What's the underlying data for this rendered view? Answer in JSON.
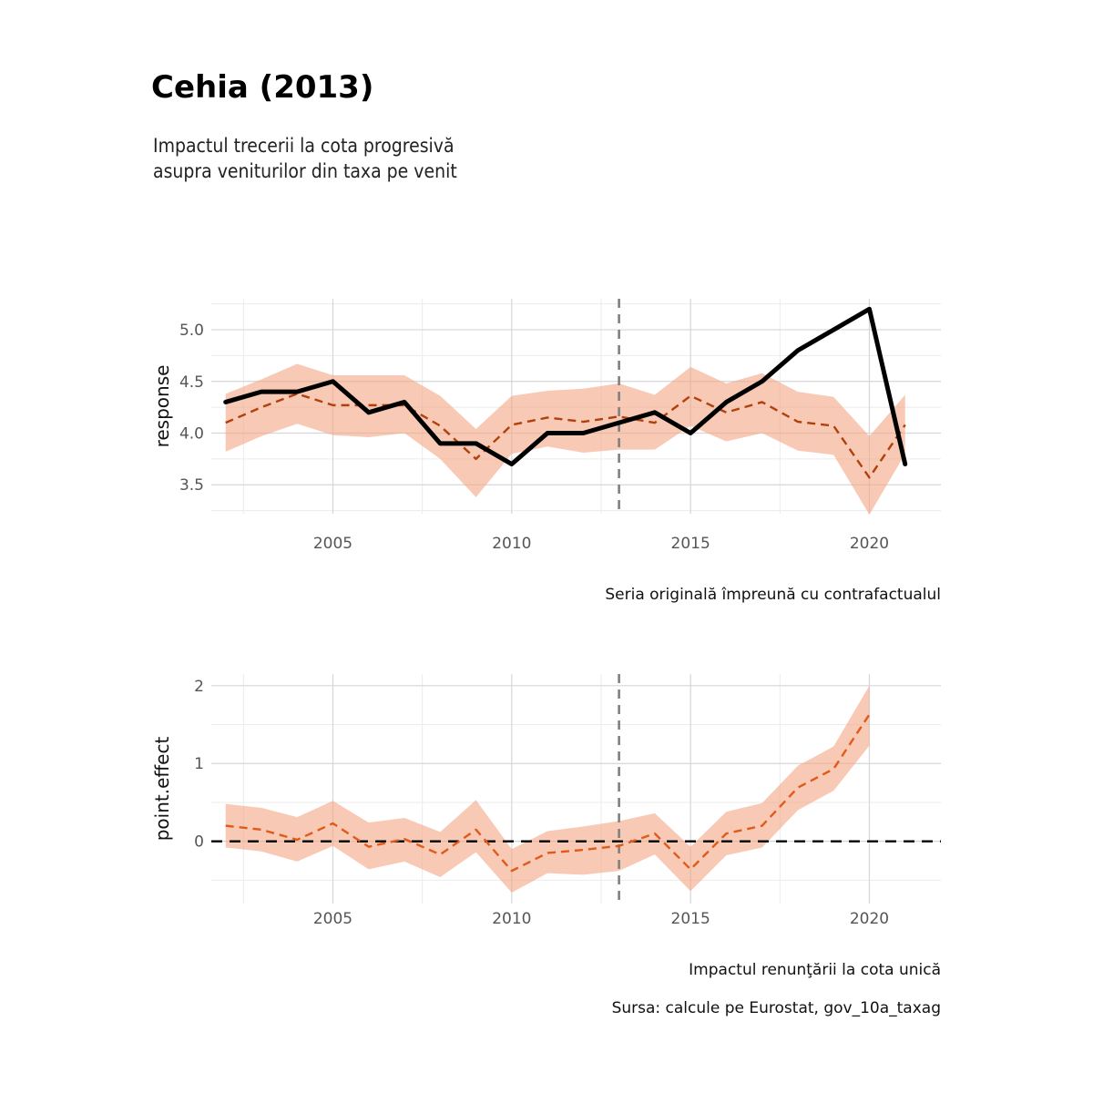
{
  "title": "Cehia (2013)",
  "subtitle_lines": [
    "Impactul trecerii la cota progresivă",
    "asupra veniturilor din taxa pe venit"
  ],
  "source": "Sursa: calcule pe Eurostat, gov_10a_taxag",
  "colors": {
    "band": "#f4a582",
    "counterfactual": "#b2400d",
    "effect": "#e05a1a",
    "actual": "#000000",
    "intervention": "#808080"
  },
  "chart_data": [
    {
      "type": "line",
      "ylabel": "response",
      "caption": "Seria originală împreună cu contrafactualul",
      "intervention_x": 2013,
      "xlim": [
        2001.6,
        2022.0
      ],
      "ylim": [
        3.22,
        5.3
      ],
      "x_ticks": [
        2005,
        2010,
        2015,
        2020
      ],
      "y_ticks": [
        3.5,
        4.0,
        4.5,
        5.0
      ],
      "y_tick_labels": [
        "3.5",
        "4.0",
        "4.5",
        "5.0"
      ],
      "x": [
        2002,
        2003,
        2004,
        2005,
        2006,
        2007,
        2008,
        2009,
        2010,
        2011,
        2012,
        2013,
        2014,
        2015,
        2016,
        2017,
        2018,
        2019,
        2020,
        2021
      ],
      "series": [
        {
          "role": "actual",
          "values": [
            4.3,
            4.4,
            4.4,
            4.5,
            4.2,
            4.3,
            3.9,
            3.9,
            3.7,
            4.0,
            4.0,
            4.1,
            4.2,
            4.0,
            4.3,
            4.5,
            4.8,
            5.0,
            5.2,
            3.7
          ]
        },
        {
          "role": "counterfactual",
          "values": [
            4.1,
            4.25,
            4.38,
            4.27,
            4.27,
            4.27,
            4.07,
            3.75,
            4.08,
            4.15,
            4.11,
            4.16,
            4.1,
            4.36,
            4.2,
            4.3,
            4.11,
            4.07,
            3.57,
            4.08
          ]
        },
        {
          "role": "lower",
          "values": [
            3.82,
            3.97,
            4.09,
            3.98,
            3.96,
            4.0,
            3.75,
            3.38,
            3.8,
            3.87,
            3.81,
            3.84,
            3.84,
            4.07,
            3.92,
            4.0,
            3.83,
            3.79,
            3.21,
            3.8
          ]
        },
        {
          "role": "upper",
          "values": [
            4.38,
            4.52,
            4.67,
            4.56,
            4.56,
            4.56,
            4.36,
            4.04,
            4.36,
            4.41,
            4.43,
            4.48,
            4.37,
            4.64,
            4.48,
            4.58,
            4.4,
            4.35,
            3.97,
            4.37
          ]
        }
      ]
    },
    {
      "type": "line",
      "ylabel": "point.effect",
      "caption": "Impactul renunţării la cota unică",
      "intervention_x": 2013,
      "zero_line": 0,
      "xlim": [
        2001.6,
        2022.0
      ],
      "ylim": [
        -0.8,
        2.15
      ],
      "x_ticks": [
        2005,
        2010,
        2015,
        2020
      ],
      "y_ticks": [
        0,
        1,
        2
      ],
      "y_tick_labels": [
        "0",
        "1",
        "2"
      ],
      "x": [
        2002,
        2003,
        2004,
        2005,
        2006,
        2007,
        2008,
        2009,
        2010,
        2011,
        2012,
        2013,
        2014,
        2015,
        2016,
        2017,
        2018,
        2019,
        2020
      ],
      "series": [
        {
          "role": "effect",
          "values": [
            0.2,
            0.15,
            0.02,
            0.23,
            -0.07,
            0.03,
            -0.17,
            0.15,
            -0.38,
            -0.15,
            -0.11,
            -0.06,
            0.1,
            -0.36,
            0.1,
            0.2,
            0.69,
            0.93,
            1.63
          ]
        },
        {
          "role": "lower",
          "values": [
            -0.08,
            -0.13,
            -0.26,
            -0.06,
            -0.36,
            -0.26,
            -0.46,
            -0.14,
            -0.66,
            -0.41,
            -0.43,
            -0.38,
            -0.17,
            -0.64,
            -0.18,
            -0.08,
            0.4,
            0.65,
            1.23
          ]
        },
        {
          "role": "upper",
          "values": [
            0.48,
            0.43,
            0.31,
            0.52,
            0.24,
            0.3,
            0.12,
            0.53,
            -0.1,
            0.13,
            0.19,
            0.26,
            0.36,
            -0.07,
            0.38,
            0.49,
            0.97,
            1.22,
            2.0
          ]
        }
      ]
    }
  ]
}
